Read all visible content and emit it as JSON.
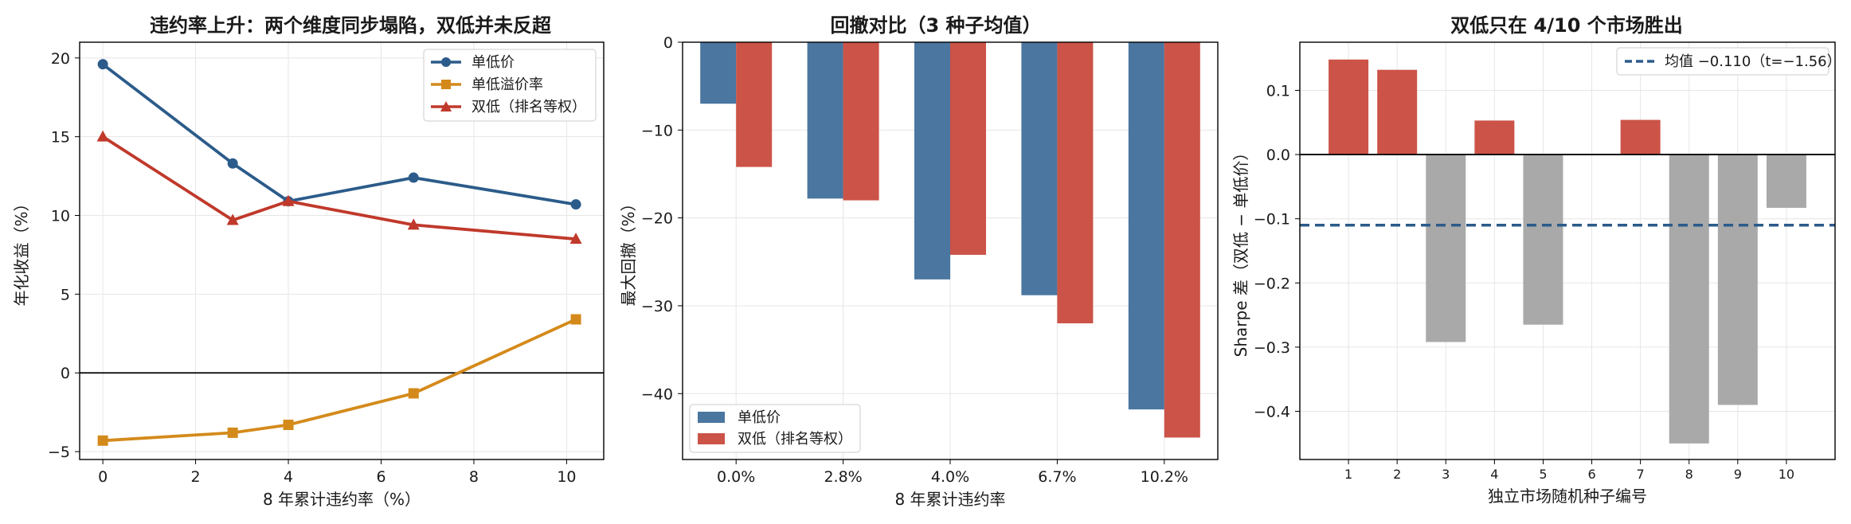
{
  "chart_data": [
    {
      "type": "line",
      "title": "违约率上升：两个维度同步塌陷，双低并未反超",
      "xlabel": "8 年累计违约率（%）",
      "ylabel": "年化收益（%）",
      "xlim": [
        -0.5,
        10.8
      ],
      "ylim": [
        -5.5,
        21
      ],
      "xticks": [
        "0",
        "2",
        "4",
        "6",
        "8",
        "10"
      ],
      "yticks": [
        "−5",
        "0",
        "5",
        "10",
        "15",
        "20"
      ],
      "grid": true,
      "legend_position": "top-right",
      "x": [
        0.0,
        2.8,
        4.0,
        6.7,
        10.2
      ],
      "series": [
        {
          "name": "单低价",
          "values": [
            19.6,
            13.3,
            10.9,
            12.4,
            10.7
          ],
          "color": "#2b5b8a",
          "marker": "circle"
        },
        {
          "name": "单低溢价率",
          "values": [
            -4.3,
            -3.8,
            -3.3,
            -1.3,
            3.4
          ],
          "color": "#d48a1b",
          "marker": "square"
        },
        {
          "name": "双低（排名等权）",
          "values": [
            15.0,
            9.7,
            10.9,
            9.4,
            8.5
          ],
          "color": "#c0392b",
          "marker": "triangle"
        }
      ]
    },
    {
      "type": "bar",
      "title": "回撤对比（3 种子均值）",
      "xlabel": "8 年累计违约率",
      "ylabel": "最大回撤（%）",
      "ylim": [
        -47.5,
        0
      ],
      "yticks": [
        "0",
        "−10",
        "−20",
        "−30",
        "−40"
      ],
      "categories": [
        "0.0%",
        "2.8%",
        "4.0%",
        "6.7%",
        "10.2%"
      ],
      "grid": true,
      "legend_position": "bottom-left",
      "series": [
        {
          "name": "单低价",
          "values": [
            -7.0,
            -17.8,
            -27.0,
            -28.8,
            -41.8
          ],
          "color": "#4a76a0"
        },
        {
          "name": "双低（排名等权）",
          "values": [
            -14.2,
            -18.0,
            -24.2,
            -32.0,
            -45.0
          ],
          "color": "#cc5347"
        }
      ]
    },
    {
      "type": "bar",
      "title": "双低只在 4/10 个市场胜出",
      "xlabel": "独立市场随机种子编号",
      "ylabel": "Sharpe 差（双低 − 单低价）",
      "ylim": [
        -0.475,
        0.175
      ],
      "yticks": [
        "0.1",
        "0.0",
        "−0.1",
        "−0.2",
        "−0.3",
        "−0.4"
      ],
      "categories": [
        "1",
        "2",
        "3",
        "4",
        "5",
        "6",
        "7",
        "8",
        "9",
        "10"
      ],
      "values": [
        0.148,
        0.132,
        -0.292,
        0.053,
        -0.265,
        0.0,
        0.054,
        -0.45,
        -0.39,
        -0.083
      ],
      "positive_color": "#cc5347",
      "negative_color": "#a9a9a9",
      "mean_line": {
        "label": "均值 −0.110（t=−1.56）",
        "value": -0.11,
        "color": "#2b5b8a"
      },
      "grid": true,
      "legend_position": "top-right"
    }
  ]
}
